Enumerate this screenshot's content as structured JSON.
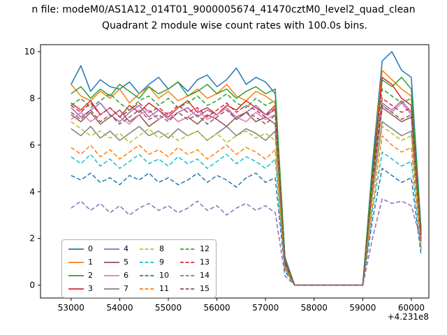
{
  "figure": {
    "title_top": "n file: modeM0/AS1A12_014T01_9000005674_41470cztM0_level2_quad_clean",
    "axes_title": "Quadrant 2 module wise count rates with 100.0s bins.",
    "x_offset_label": "+4.231e8"
  },
  "chart_data": {
    "type": "line",
    "title": "Quadrant 2 module wise count rates with 100.0s bins.",
    "suptitle_visible": "n file: modeM0/AS1A12_014T01_9000005674_41470cztM0_level2_quad_clean",
    "xlabel": "",
    "ylabel": "",
    "x_offset": "+4.231e8",
    "xlim": [
      52370,
      60360
    ],
    "ylim": [
      -0.55,
      10.3
    ],
    "x_ticks": [
      53000,
      54000,
      55000,
      56000,
      57000,
      58000,
      59000,
      60000
    ],
    "y_ticks": [
      0,
      2,
      4,
      6,
      8,
      10
    ],
    "grid": false,
    "legend_position": "lower left",
    "legend_labels": [
      "0",
      "1",
      "2",
      "3",
      "4",
      "5",
      "6",
      "7",
      "8",
      "9",
      "10",
      "11",
      "12",
      "13",
      "14",
      "15"
    ],
    "x": [
      53000,
      53200,
      53400,
      53600,
      53800,
      54000,
      54200,
      54400,
      54600,
      54800,
      55000,
      55200,
      55400,
      55600,
      55800,
      56000,
      56200,
      56400,
      56600,
      56800,
      57000,
      57200,
      57400,
      57600,
      57800,
      58000,
      58200,
      58400,
      58600,
      58800,
      59000,
      59200,
      59400,
      59600,
      59800,
      60000,
      60200
    ],
    "series": [
      {
        "name": "0",
        "color": "#1f77b4",
        "dashed": false,
        "values": [
          8.6,
          9.4,
          8.3,
          8.8,
          8.5,
          8.4,
          8.7,
          8.2,
          8.6,
          8.9,
          8.4,
          8.7,
          8.3,
          8.8,
          9.0,
          8.5,
          8.8,
          9.3,
          8.6,
          8.9,
          8.7,
          8.2,
          1.2,
          0,
          0,
          0,
          0,
          0,
          0,
          0,
          0,
          5.2,
          9.6,
          10.0,
          9.2,
          8.9,
          2.4
        ]
      },
      {
        "name": "1",
        "color": "#ff7f0e",
        "dashed": false,
        "values": [
          8.6,
          8.1,
          7.9,
          8.3,
          8.0,
          8.4,
          7.8,
          8.2,
          8.5,
          8.0,
          8.3,
          7.9,
          8.1,
          8.4,
          8.0,
          8.2,
          8.6,
          8.1,
          7.9,
          8.3,
          8.1,
          7.8,
          1.1,
          0,
          0,
          0,
          0,
          0,
          0,
          0,
          0,
          4.9,
          9.2,
          8.8,
          8.4,
          8.1,
          2.2
        ]
      },
      {
        "name": "2",
        "color": "#2ca02c",
        "dashed": false,
        "values": [
          8.2,
          8.5,
          8.0,
          8.4,
          8.1,
          8.6,
          8.3,
          8.0,
          8.5,
          8.2,
          8.4,
          8.7,
          8.1,
          8.3,
          8.6,
          8.2,
          8.4,
          8.0,
          8.3,
          8.5,
          8.2,
          8.4,
          1.1,
          0,
          0,
          0,
          0,
          0,
          0,
          0,
          0,
          5.0,
          8.8,
          8.5,
          8.9,
          8.4,
          2.3
        ]
      },
      {
        "name": "3",
        "color": "#d62728",
        "dashed": false,
        "values": [
          7.8,
          7.5,
          7.9,
          7.3,
          7.6,
          7.2,
          7.7,
          7.4,
          7.8,
          7.5,
          7.2,
          7.6,
          7.9,
          7.4,
          7.6,
          7.3,
          7.7,
          7.5,
          7.9,
          7.6,
          7.3,
          7.7,
          1.0,
          0,
          0,
          0,
          0,
          0,
          0,
          0,
          0,
          4.6,
          8.9,
          8.6,
          8.0,
          7.7,
          2.1
        ]
      },
      {
        "name": "4",
        "color": "#9467bd",
        "dashed": false,
        "values": [
          7.6,
          7.2,
          7.5,
          7.8,
          7.3,
          7.0,
          7.4,
          7.7,
          7.2,
          7.5,
          7.1,
          7.4,
          7.6,
          7.2,
          7.5,
          7.3,
          7.6,
          7.1,
          7.4,
          7.7,
          7.3,
          7.5,
          1.0,
          0,
          0,
          0,
          0,
          0,
          0,
          0,
          0,
          4.4,
          7.8,
          7.5,
          7.9,
          7.4,
          2.0
        ]
      },
      {
        "name": "5",
        "color": "#8c564b",
        "dashed": false,
        "values": [
          7.3,
          7.0,
          7.4,
          6.9,
          7.2,
          7.5,
          7.0,
          7.3,
          6.8,
          7.1,
          7.4,
          7.0,
          7.2,
          6.9,
          7.3,
          7.1,
          6.8,
          7.2,
          7.4,
          7.0,
          7.2,
          6.9,
          0.9,
          0,
          0,
          0,
          0,
          0,
          0,
          0,
          0,
          4.2,
          7.6,
          7.3,
          7.0,
          7.2,
          1.9
        ]
      },
      {
        "name": "6",
        "color": "#e377c2",
        "dashed": false,
        "values": [
          7.1,
          7.4,
          7.0,
          7.3,
          7.6,
          7.2,
          6.9,
          7.3,
          7.5,
          7.1,
          7.4,
          7.0,
          7.2,
          7.5,
          7.1,
          7.3,
          7.6,
          7.2,
          7.0,
          7.4,
          7.1,
          7.3,
          0.9,
          0,
          0,
          0,
          0,
          0,
          0,
          0,
          0,
          4.3,
          7.7,
          7.4,
          7.8,
          7.3,
          2.0
        ]
      },
      {
        "name": "7",
        "color": "#7f7f7f",
        "dashed": false,
        "values": [
          6.7,
          6.4,
          6.8,
          6.3,
          6.6,
          6.2,
          6.5,
          6.8,
          6.4,
          6.6,
          6.3,
          6.7,
          6.4,
          6.6,
          6.2,
          6.5,
          6.8,
          6.4,
          6.7,
          6.5,
          6.2,
          6.6,
          0.8,
          0,
          0,
          0,
          0,
          0,
          0,
          0,
          0,
          3.9,
          7.0,
          6.7,
          6.4,
          6.6,
          1.8
        ]
      },
      {
        "name": "8",
        "color": "#bcbd22",
        "dashed": true,
        "values": [
          7.0,
          6.7,
          6.4,
          6.6,
          6.3,
          6.5,
          6.1,
          6.4,
          6.7,
          6.3,
          6.5,
          6.2,
          6.4,
          6.6,
          6.2,
          6.5,
          6.1,
          6.4,
          6.6,
          6.3,
          6.5,
          6.2,
          0.8,
          0,
          0,
          0,
          0,
          0,
          0,
          0,
          0,
          3.8,
          6.8,
          6.5,
          6.2,
          6.4,
          1.8
        ]
      },
      {
        "name": "9",
        "color": "#17becf",
        "dashed": true,
        "values": [
          5.5,
          5.2,
          5.6,
          5.1,
          5.4,
          5.0,
          5.3,
          5.6,
          5.2,
          5.4,
          5.1,
          5.5,
          5.2,
          5.4,
          5.0,
          5.3,
          5.6,
          5.2,
          5.5,
          5.3,
          5.0,
          5.4,
          0.7,
          0,
          0,
          0,
          0,
          0,
          0,
          0,
          0,
          3.2,
          5.7,
          5.4,
          5.1,
          5.3,
          1.5
        ]
      },
      {
        "name": "10",
        "color": "#1f77b4",
        "dashed": true,
        "values": [
          4.7,
          4.5,
          4.8,
          4.4,
          4.6,
          4.3,
          4.7,
          4.5,
          4.8,
          4.4,
          4.6,
          4.3,
          4.5,
          4.8,
          4.4,
          4.7,
          4.5,
          4.2,
          4.6,
          4.8,
          4.4,
          4.6,
          0.6,
          0,
          0,
          0,
          0,
          0,
          0,
          0,
          0,
          2.8,
          5.0,
          4.7,
          4.4,
          4.6,
          1.3
        ]
      },
      {
        "name": "11",
        "color": "#ff7f0e",
        "dashed": true,
        "values": [
          5.9,
          5.6,
          6.0,
          5.5,
          5.8,
          5.4,
          5.7,
          6.0,
          5.6,
          5.8,
          5.5,
          5.9,
          5.6,
          5.8,
          5.4,
          5.7,
          6.0,
          5.6,
          5.9,
          5.7,
          5.4,
          5.8,
          0.7,
          0,
          0,
          0,
          0,
          0,
          0,
          0,
          0,
          3.4,
          6.4,
          6.0,
          5.7,
          5.9,
          1.6
        ]
      },
      {
        "name": "12",
        "color": "#2ca02c",
        "dashed": true,
        "values": [
          7.7,
          8.0,
          7.6,
          7.9,
          8.2,
          7.8,
          7.5,
          7.9,
          8.1,
          7.7,
          8.0,
          7.6,
          7.8,
          8.1,
          7.7,
          7.9,
          8.2,
          7.8,
          7.6,
          8.0,
          7.7,
          7.9,
          1.0,
          0,
          0,
          0,
          0,
          0,
          0,
          0,
          0,
          4.7,
          8.4,
          8.1,
          7.8,
          8.0,
          2.2
        ]
      },
      {
        "name": "13",
        "color": "#d62728",
        "dashed": true,
        "values": [
          7.7,
          7.4,
          7.8,
          7.3,
          7.6,
          7.2,
          7.5,
          7.8,
          7.4,
          7.6,
          7.3,
          7.7,
          7.4,
          7.6,
          7.2,
          7.5,
          7.8,
          7.4,
          7.7,
          7.5,
          7.2,
          7.6,
          1.0,
          0,
          0,
          0,
          0,
          0,
          0,
          0,
          0,
          4.5,
          8.0,
          7.7,
          7.4,
          7.6,
          2.1
        ]
      },
      {
        "name": "14",
        "color": "#9467bd",
        "dashed": true,
        "values": [
          3.3,
          3.6,
          3.2,
          3.5,
          3.1,
          3.4,
          3.0,
          3.3,
          3.5,
          3.2,
          3.4,
          3.1,
          3.3,
          3.6,
          3.2,
          3.4,
          3.0,
          3.3,
          3.5,
          3.2,
          3.4,
          3.1,
          0.4,
          0,
          0,
          0,
          0,
          0,
          0,
          0,
          0,
          2.0,
          3.7,
          3.5,
          3.6,
          3.4,
          1.9
        ]
      },
      {
        "name": "15",
        "color": "#8c564b",
        "dashed": true,
        "values": [
          7.4,
          7.1,
          7.5,
          7.0,
          7.3,
          6.9,
          7.2,
          7.5,
          7.1,
          7.3,
          7.0,
          7.4,
          7.1,
          7.3,
          6.9,
          7.2,
          7.5,
          7.1,
          7.4,
          7.2,
          6.9,
          7.3,
          0.9,
          0,
          0,
          0,
          0,
          0,
          0,
          0,
          0,
          4.3,
          7.7,
          7.4,
          7.1,
          7.3,
          2.0
        ]
      }
    ]
  }
}
